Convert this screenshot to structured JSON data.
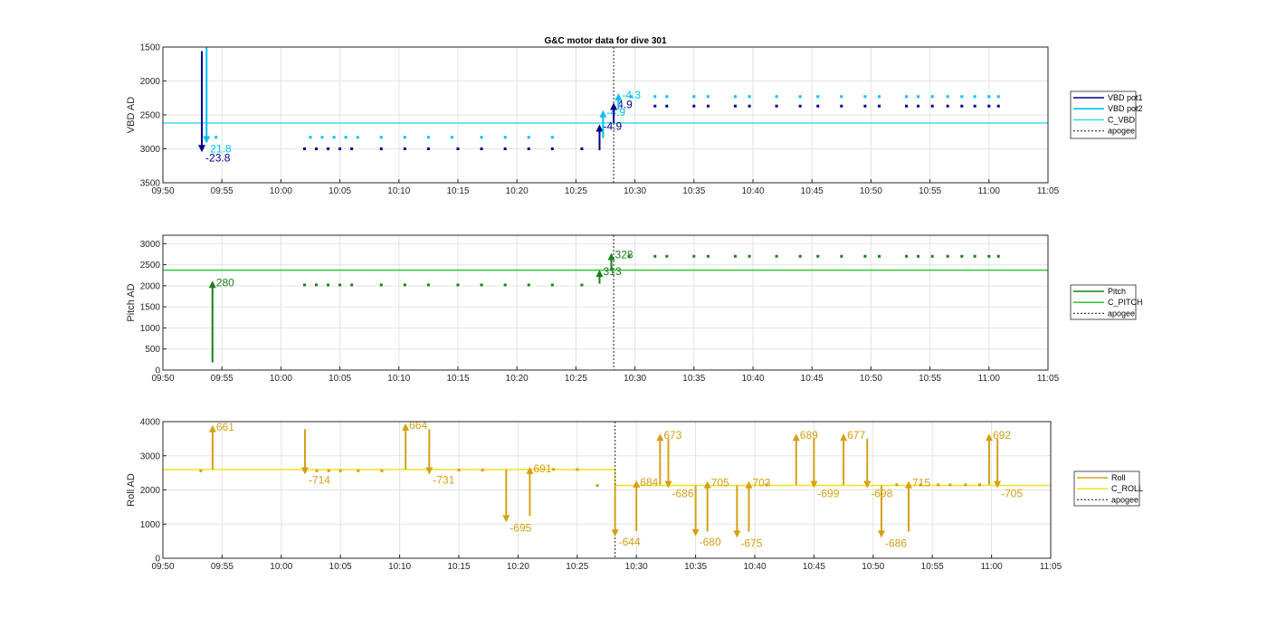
{
  "chart_data": [
    {
      "type": "scatter",
      "title": "G&C motor data for dive 301",
      "ylabel": "VBD AD",
      "ylim": [
        1500,
        3500
      ],
      "y_reversed": true,
      "y_ticks": [
        1500,
        2000,
        2500,
        3000,
        3500
      ],
      "x_range": [
        "09:50",
        "11:05"
      ],
      "x_ticks": [
        "09:50",
        "09:55",
        "10:00",
        "10:05",
        "10:10",
        "10:15",
        "10:20",
        "10:25",
        "10:30",
        "10:35",
        "10:40",
        "10:45",
        "10:50",
        "10:55",
        "11:00",
        "11:05"
      ],
      "grid": true,
      "legend": [
        "VBD pot1",
        "VBD pot2",
        "C_VBD",
        "apogee"
      ],
      "apogee": "10:28.2",
      "series": [
        {
          "name": "VBD pot1",
          "color": "#00008b",
          "x": [
            "10:02",
            "10:03",
            "10:04",
            "10:05",
            "10:06",
            "10:08.5",
            "10:10.5",
            "10:12.5",
            "10:15",
            "10:17",
            "10:19",
            "10:21",
            "10:23",
            "10:25.5",
            "10:31.7",
            "10:32.7",
            "10:35",
            "10:36.2",
            "10:38.5",
            "10:39.7",
            "10:42",
            "10:44",
            "10:45.5",
            "10:47.5",
            "10:49.5",
            "10:50.7",
            "10:53",
            "10:54",
            "10:55.2",
            "10:56.5",
            "10:57.7",
            "10:58.8",
            "11:00",
            "11:00.8"
          ],
          "y": [
            3000,
            3000,
            3000,
            3000,
            3000,
            3000,
            3000,
            3000,
            3000,
            3000,
            3000,
            3000,
            3000,
            3000,
            2370,
            2370,
            2370,
            2370,
            2370,
            2370,
            2370,
            2370,
            2370,
            2370,
            2370,
            2370,
            2370,
            2370,
            2370,
            2370,
            2370,
            2370,
            2370,
            2370
          ]
        },
        {
          "name": "VBD pot2",
          "color": "#00bfff",
          "x": [
            "09:54.5",
            "10:02.5",
            "10:03.5",
            "10:04.5",
            "10:05.5",
            "10:06.5",
            "10:08.5",
            "10:10.5",
            "10:12.5",
            "10:14.5",
            "10:17",
            "10:19",
            "10:21",
            "10:23",
            "10:29.7",
            "10:31.7",
            "10:32.7",
            "10:35",
            "10:36.2",
            "10:38.5",
            "10:39.7",
            "10:42",
            "10:44",
            "10:45.5",
            "10:47.5",
            "10:49.5",
            "10:50.7",
            "10:53",
            "10:54",
            "10:55.2",
            "10:56.5",
            "10:57.7",
            "10:58.8",
            "11:00",
            "11:00.8"
          ],
          "y": [
            2830,
            2830,
            2830,
            2830,
            2830,
            2830,
            2830,
            2830,
            2830,
            2830,
            2830,
            2830,
            2830,
            2830,
            2230,
            2230,
            2230,
            2230,
            2230,
            2230,
            2230,
            2230,
            2230,
            2230,
            2230,
            2230,
            2230,
            2230,
            2230,
            2230,
            2230,
            2230,
            2230,
            2230,
            2230
          ]
        },
        {
          "name": "C_VBD",
          "color": "#44d9e6",
          "x": [
            "09:50",
            "11:05"
          ],
          "y": [
            2620,
            2620
          ]
        }
      ],
      "moves": [
        {
          "series": "VBD pot1",
          "x": "09:53.3",
          "from": 1560,
          "to": 3050,
          "label": "-23.8"
        },
        {
          "series": "VBD pot2",
          "x": "09:53.7",
          "from": 1500,
          "to": 2920,
          "label": "21.8"
        },
        {
          "series": "VBD pot1",
          "x": "10:27",
          "from": 3020,
          "to": 2640,
          "label": "-4.9"
        },
        {
          "series": "VBD pot2",
          "x": "10:27.3",
          "from": 2840,
          "to": 2430,
          "label": "-4.9"
        },
        {
          "series": "VBD pot1",
          "x": "10:28.2",
          "from": 2620,
          "to": 2320,
          "label": "4.9"
        },
        {
          "series": "VBD pot2",
          "x": "10:28.6",
          "from": 2420,
          "to": 2180,
          "label": "-4.3"
        }
      ]
    },
    {
      "type": "scatter",
      "ylabel": "Pitch AD",
      "ylim": [
        0,
        3200
      ],
      "y_ticks": [
        0,
        500,
        1000,
        1500,
        2000,
        2500,
        3000
      ],
      "x_range": [
        "09:50",
        "11:05"
      ],
      "x_ticks": [
        "09:50",
        "09:55",
        "10:00",
        "10:05",
        "10:10",
        "10:15",
        "10:20",
        "10:25",
        "10:30",
        "10:35",
        "10:40",
        "10:45",
        "10:50",
        "10:55",
        "11:00",
        "11:05"
      ],
      "grid": true,
      "legend": [
        "Pitch",
        "C_PITCH",
        "apogee"
      ],
      "apogee": "10:28.2",
      "series": [
        {
          "name": "Pitch",
          "color": "#1a7f1a",
          "x": [
            "10:02",
            "10:03",
            "10:04",
            "10:05",
            "10:06",
            "10:08.5",
            "10:10.5",
            "10:12.5",
            "10:15",
            "10:17",
            "10:19",
            "10:21",
            "10:23",
            "10:25.5",
            "10:29.5",
            "10:31.7",
            "10:32.7",
            "10:35",
            "10:36.2",
            "10:38.5",
            "10:39.7",
            "10:42",
            "10:44",
            "10:45.5",
            "10:47.5",
            "10:49.5",
            "10:50.7",
            "10:53",
            "10:54",
            "10:55.2",
            "10:56.5",
            "10:57.7",
            "10:58.8",
            "11:00",
            "11:00.8"
          ],
          "y": [
            2020,
            2020,
            2020,
            2020,
            2020,
            2020,
            2020,
            2020,
            2020,
            2020,
            2020,
            2020,
            2020,
            2020,
            2700,
            2700,
            2700,
            2700,
            2700,
            2700,
            2700,
            2700,
            2700,
            2700,
            2700,
            2700,
            2700,
            2700,
            2700,
            2700,
            2700,
            2700,
            2700,
            2700,
            2700
          ]
        },
        {
          "name": "C_PITCH",
          "color": "#3cc93c",
          "x": [
            "09:50",
            "11:05"
          ],
          "y": [
            2370,
            2370
          ]
        }
      ],
      "moves": [
        {
          "series": "Pitch",
          "x": "09:54.2",
          "from": 180,
          "to": 2120,
          "label": "280"
        },
        {
          "series": "Pitch",
          "x": "10:27",
          "from": 2050,
          "to": 2380,
          "label": "313"
        },
        {
          "series": "Pitch",
          "x": "10:28",
          "from": 2350,
          "to": 2780,
          "label": "328"
        }
      ]
    },
    {
      "type": "scatter",
      "ylabel": "Roll AD",
      "ylim": [
        0,
        4000
      ],
      "y_ticks": [
        0,
        1000,
        2000,
        3000,
        4000
      ],
      "x_range": [
        "09:50",
        "11:05"
      ],
      "x_ticks": [
        "09:50",
        "09:55",
        "10:00",
        "10:05",
        "10:10",
        "10:15",
        "10:20",
        "10:25",
        "10:30",
        "10:35",
        "10:40",
        "10:45",
        "10:50",
        "10:55",
        "11:00",
        "11:05"
      ],
      "grid": true,
      "legend": [
        "Roll",
        "C_ROLL",
        "apogee"
      ],
      "apogee": "10:28.2",
      "series": [
        {
          "name": "Roll",
          "color": "#d4a017",
          "x": [
            "09:53.2",
            "10:03",
            "10:04",
            "10:05",
            "10:06.5",
            "10:08.5",
            "10:15",
            "10:17",
            "10:23",
            "10:25",
            "10:26.7",
            "10:41",
            "10:52",
            "10:54",
            "10:55.5",
            "10:56.5",
            "10:57.8",
            "10:59"
          ],
          "y": [
            2560,
            2560,
            2560,
            2560,
            2560,
            2560,
            2580,
            2580,
            2600,
            2600,
            2130,
            2150,
            2150,
            2150,
            2150,
            2150,
            2150,
            2150
          ]
        },
        {
          "name": "C_ROLL",
          "color": "#f2e32a",
          "x": [
            "09:50",
            "10:28.2",
            "10:28.2",
            "11:05"
          ],
          "y": [
            2600,
            2600,
            2130,
            2130
          ]
        }
      ],
      "moves": [
        {
          "x": "09:54.2",
          "from": 2600,
          "to": 3900,
          "label": "661"
        },
        {
          "x": "10:02",
          "from": 3780,
          "to": 2450,
          "label": "-714"
        },
        {
          "x": "10:10.5",
          "from": 2600,
          "to": 3950,
          "label": "664"
        },
        {
          "x": "10:12.5",
          "from": 3780,
          "to": 2450,
          "label": "-731"
        },
        {
          "x": "10:19",
          "from": 2600,
          "to": 1050,
          "label": "-695"
        },
        {
          "x": "10:21",
          "from": 1240,
          "to": 2680,
          "label": "691"
        },
        {
          "x": "10:28.2",
          "from": 2130,
          "to": 630,
          "label": "-644"
        },
        {
          "x": "10:30",
          "from": 800,
          "to": 2280,
          "label": "684"
        },
        {
          "x": "10:32",
          "from": 2150,
          "to": 3650,
          "label": "673"
        },
        {
          "x": "10:32.7",
          "from": 3500,
          "to": 2050,
          "label": "-686"
        },
        {
          "x": "10:35",
          "from": 2130,
          "to": 640,
          "label": "-680"
        },
        {
          "x": "10:36",
          "from": 780,
          "to": 2260,
          "label": "705"
        },
        {
          "x": "10:38.5",
          "from": 2130,
          "to": 600,
          "label": "-675"
        },
        {
          "x": "10:39.5",
          "from": 780,
          "to": 2260,
          "label": "703"
        },
        {
          "x": "10:43.5",
          "from": 2150,
          "to": 3650,
          "label": "689"
        },
        {
          "x": "10:45",
          "from": 3500,
          "to": 2050,
          "label": "-699"
        },
        {
          "x": "10:47.5",
          "from": 2150,
          "to": 3650,
          "label": "677"
        },
        {
          "x": "10:49.5",
          "from": 3500,
          "to": 2050,
          "label": "-698"
        },
        {
          "x": "10:50.7",
          "from": 2130,
          "to": 600,
          "label": "-686"
        },
        {
          "x": "10:53",
          "from": 780,
          "to": 2260,
          "label": "715"
        },
        {
          "x": "10:59.8",
          "from": 2150,
          "to": 3650,
          "label": "692"
        },
        {
          "x": "11:00.5",
          "from": 3500,
          "to": 2050,
          "label": "-705"
        }
      ]
    }
  ]
}
